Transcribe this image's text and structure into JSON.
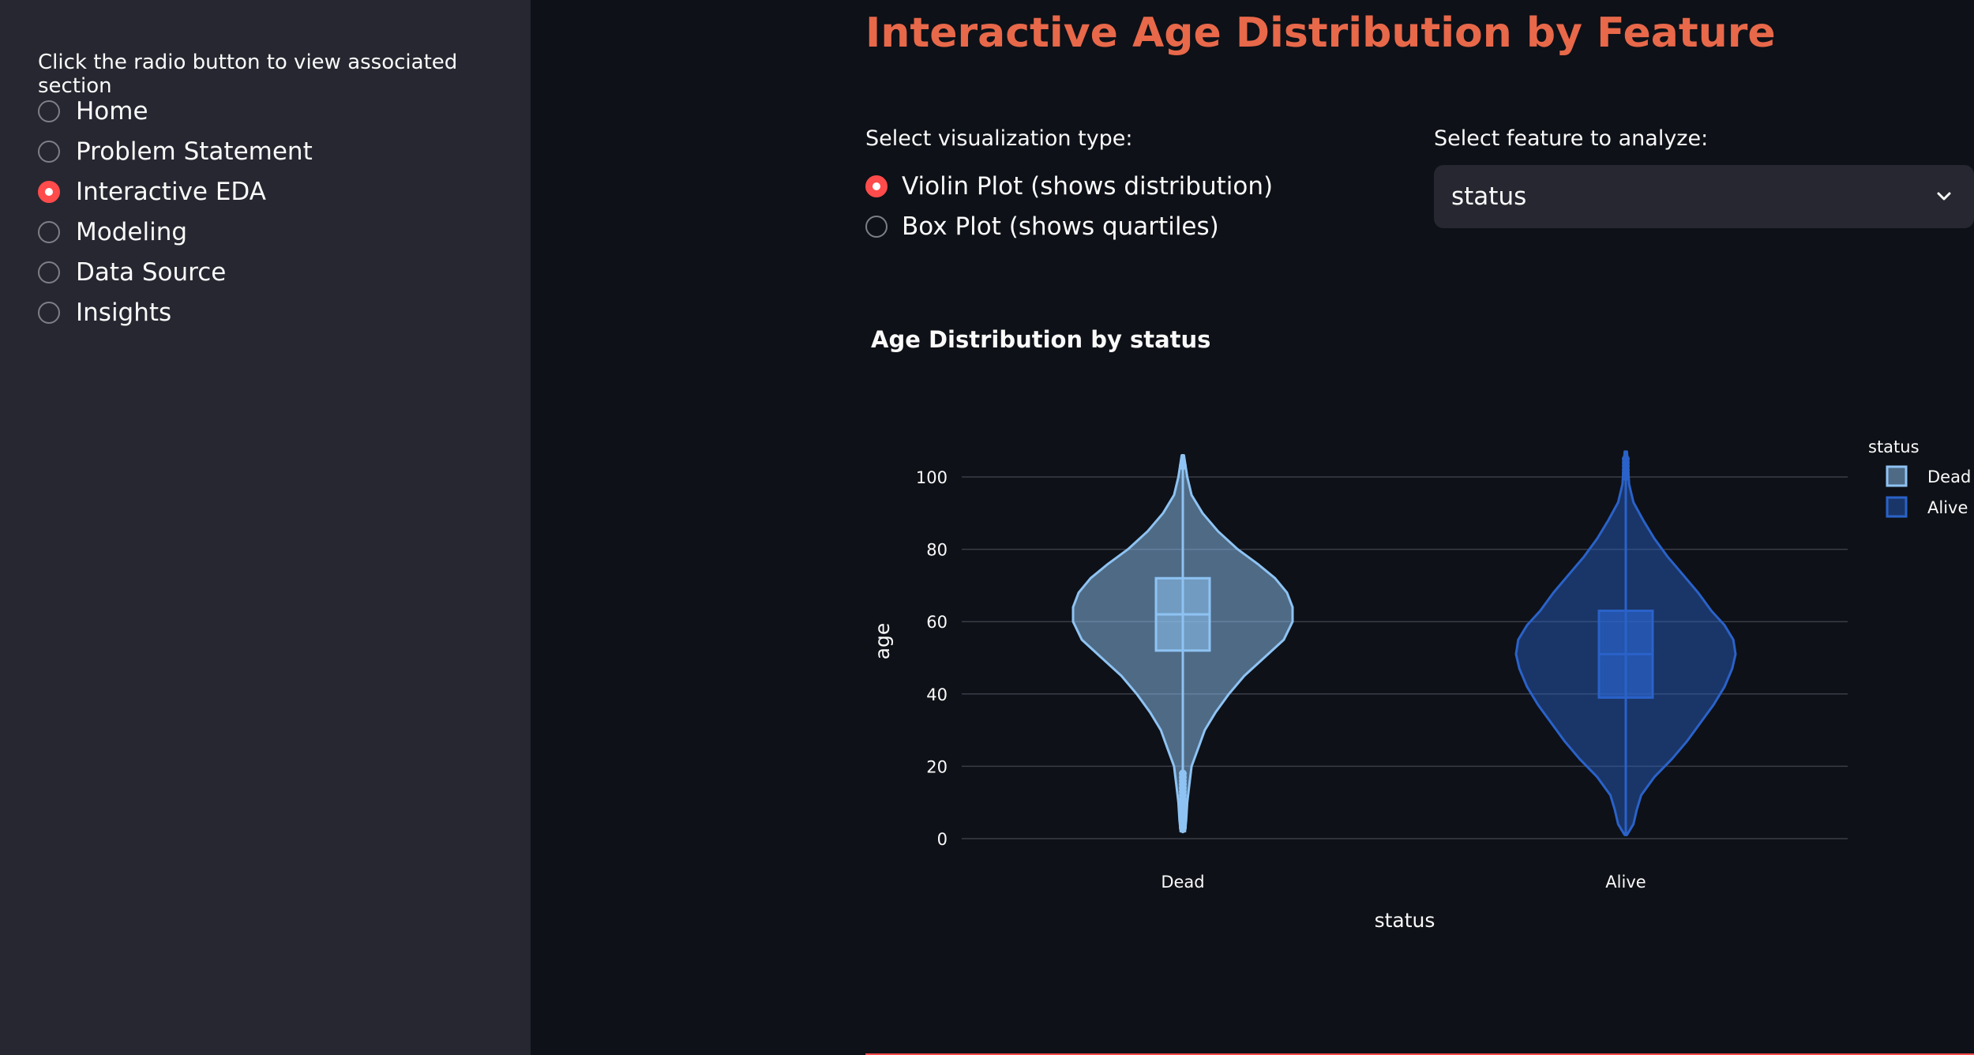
{
  "sidebar": {
    "prompt": "Click the radio button to view associated section",
    "items": [
      {
        "label": "Home",
        "checked": false
      },
      {
        "label": "Problem Statement",
        "checked": false
      },
      {
        "label": "Interactive EDA",
        "checked": true
      },
      {
        "label": "Modeling",
        "checked": false
      },
      {
        "label": "Data Source",
        "checked": false
      },
      {
        "label": "Insights",
        "checked": false
      }
    ]
  },
  "main": {
    "title": "Interactive Age Distribution by Feature",
    "viz_type": {
      "label": "Select visualization type:",
      "options": [
        {
          "label": "Violin Plot (shows distribution)",
          "checked": true
        },
        {
          "label": "Box Plot (shows quartiles)",
          "checked": false
        }
      ]
    },
    "feature": {
      "label": "Select feature to analyze:",
      "value": "status",
      "icon": "chevron-down-icon"
    }
  },
  "colors": {
    "accent": "#ff4b4b",
    "title": "#e8684a",
    "sidebar_bg": "#262730",
    "main_bg": "#0e1117",
    "dead": "#8ec3f3",
    "alive": "#2a62c9"
  },
  "chart_data": {
    "type": "violin",
    "title": "Age Distribution by status",
    "xlabel": "status",
    "ylabel": "age",
    "categories": [
      "Dead",
      "Alive"
    ],
    "yticks": [
      0,
      20,
      40,
      60,
      80,
      100
    ],
    "ylim": [
      -2,
      107
    ],
    "grid": true,
    "legend": {
      "title": "status",
      "position": "top-right",
      "entries": [
        "Dead",
        "Alive"
      ]
    },
    "series": [
      {
        "name": "Dead",
        "box": {
          "q1": 52,
          "median": 62,
          "q3": 72,
          "whisker_low": 20,
          "whisker_high": 100
        },
        "range": [
          1.5,
          106
        ],
        "outliers": [
          3,
          4,
          5,
          6,
          7,
          8,
          9,
          10,
          11,
          12,
          13,
          14,
          15,
          16,
          17,
          18,
          103
        ],
        "density": [
          [
            2,
            0.02
          ],
          [
            5,
            0.03
          ],
          [
            10,
            0.04
          ],
          [
            15,
            0.06
          ],
          [
            20,
            0.08
          ],
          [
            25,
            0.14
          ],
          [
            30,
            0.2
          ],
          [
            35,
            0.3
          ],
          [
            40,
            0.42
          ],
          [
            45,
            0.56
          ],
          [
            50,
            0.74
          ],
          [
            55,
            0.92
          ],
          [
            60,
            1.0
          ],
          [
            64,
            1.0
          ],
          [
            68,
            0.95
          ],
          [
            72,
            0.84
          ],
          [
            76,
            0.68
          ],
          [
            80,
            0.5
          ],
          [
            85,
            0.32
          ],
          [
            90,
            0.18
          ],
          [
            95,
            0.08
          ],
          [
            100,
            0.04
          ],
          [
            106,
            0.01
          ]
        ]
      },
      {
        "name": "Alive",
        "box": {
          "q1": 39,
          "median": 51,
          "q3": 63,
          "whisker_low": 5,
          "whisker_high": 93
        },
        "range": [
          1,
          107
        ],
        "outliers": [
          100,
          101,
          102,
          103,
          104,
          105
        ],
        "density": [
          [
            1,
            0.01
          ],
          [
            4,
            0.07
          ],
          [
            8,
            0.1
          ],
          [
            12,
            0.14
          ],
          [
            17,
            0.26
          ],
          [
            22,
            0.42
          ],
          [
            27,
            0.56
          ],
          [
            32,
            0.68
          ],
          [
            37,
            0.8
          ],
          [
            42,
            0.9
          ],
          [
            47,
            0.97
          ],
          [
            51,
            1.0
          ],
          [
            55,
            0.98
          ],
          [
            59,
            0.9
          ],
          [
            63,
            0.78
          ],
          [
            68,
            0.66
          ],
          [
            73,
            0.52
          ],
          [
            78,
            0.38
          ],
          [
            83,
            0.26
          ],
          [
            88,
            0.16
          ],
          [
            93,
            0.07
          ],
          [
            98,
            0.03
          ],
          [
            103,
            0.02
          ],
          [
            107,
            0.01
          ]
        ]
      }
    ]
  }
}
